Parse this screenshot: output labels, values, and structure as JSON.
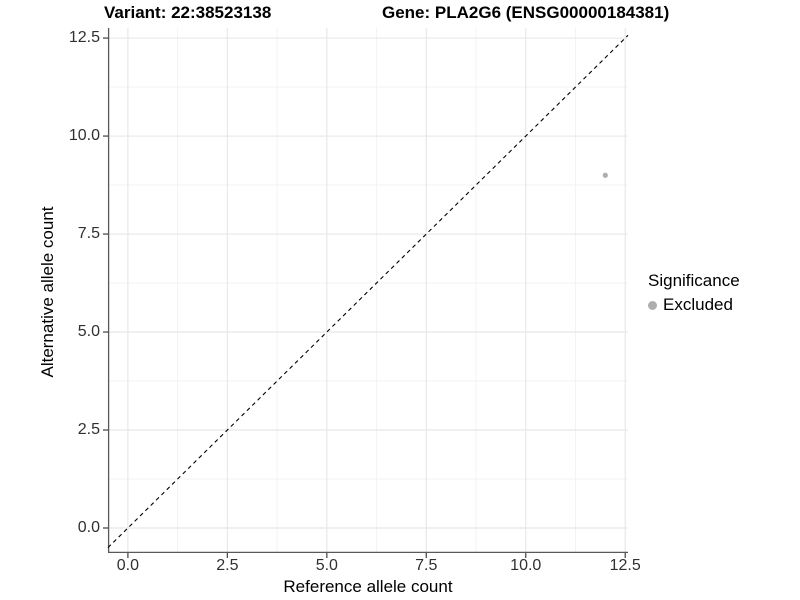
{
  "titles": {
    "left": "Variant: 22:38523138",
    "right": "Gene: PLA2G6 (ENSG00000184381)"
  },
  "chart_data": {
    "type": "scatter",
    "title": "Variant: 22:38523138 — Gene: PLA2G6 (ENSG00000184381)",
    "xlabel": "Reference allele count",
    "ylabel": "Alternative allele count",
    "xlim": [
      -0.5,
      12.57
    ],
    "ylim": [
      -0.638,
      12.757
    ],
    "xticks": [
      0,
      2.5,
      5,
      7.5,
      10,
      12.5
    ],
    "xtick_labels": [
      "0.0",
      "2.5",
      "5.0",
      "7.5",
      "10.0",
      "12.5"
    ],
    "yticks": [
      0,
      2.5,
      5,
      7.5,
      10,
      12.5
    ],
    "ytick_labels": [
      "0.0",
      "2.5",
      "5.0",
      "7.5",
      "10.0",
      "12.5"
    ],
    "x_minor_ticks": [
      1.25,
      3.75,
      6.25,
      8.75,
      11.25
    ],
    "y_minor_ticks": [
      1.25,
      3.75,
      6.25,
      8.75,
      11.25
    ],
    "grid": true,
    "identity_line": true,
    "points": [
      {
        "x": 12,
        "y": 9,
        "significance": "Excluded"
      }
    ],
    "legend": {
      "position": "right",
      "title": "Significance",
      "items": [
        {
          "label": "Excluded",
          "color": "#aeaeae"
        }
      ]
    },
    "colors": {
      "point": "#aeaeae",
      "grid_major": "#e8e8e8",
      "grid_minor": "#f3f3f3",
      "axis_line": "#595959",
      "tick_mark": "#4d4d4d",
      "tick_label": "#303030",
      "identity_line": "#000000",
      "background": "#ffffff"
    }
  }
}
